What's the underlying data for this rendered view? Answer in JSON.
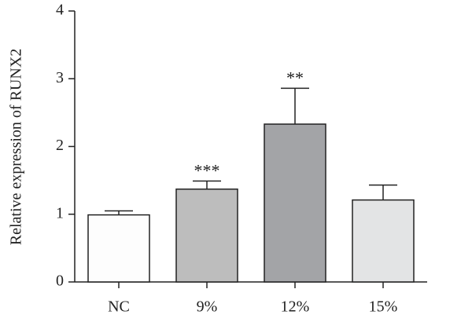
{
  "chart_data": {
    "type": "bar",
    "ylabel": "Relative expression of RUNX2",
    "xlabel": "",
    "categories": [
      "NC",
      "9%",
      "12%",
      "15%"
    ],
    "values": [
      0.99,
      1.37,
      2.33,
      1.21
    ],
    "errors": [
      0.06,
      0.12,
      0.53,
      0.22
    ],
    "significance": [
      "",
      "***",
      "**",
      ""
    ],
    "bar_colors": [
      "#fdfdfd",
      "#bdbdbd",
      "#a3a4a7",
      "#e3e4e5"
    ],
    "ylim": [
      0,
      4
    ],
    "yticks": [
      "0",
      "1",
      "2",
      "3",
      "4"
    ],
    "grid": false
  }
}
